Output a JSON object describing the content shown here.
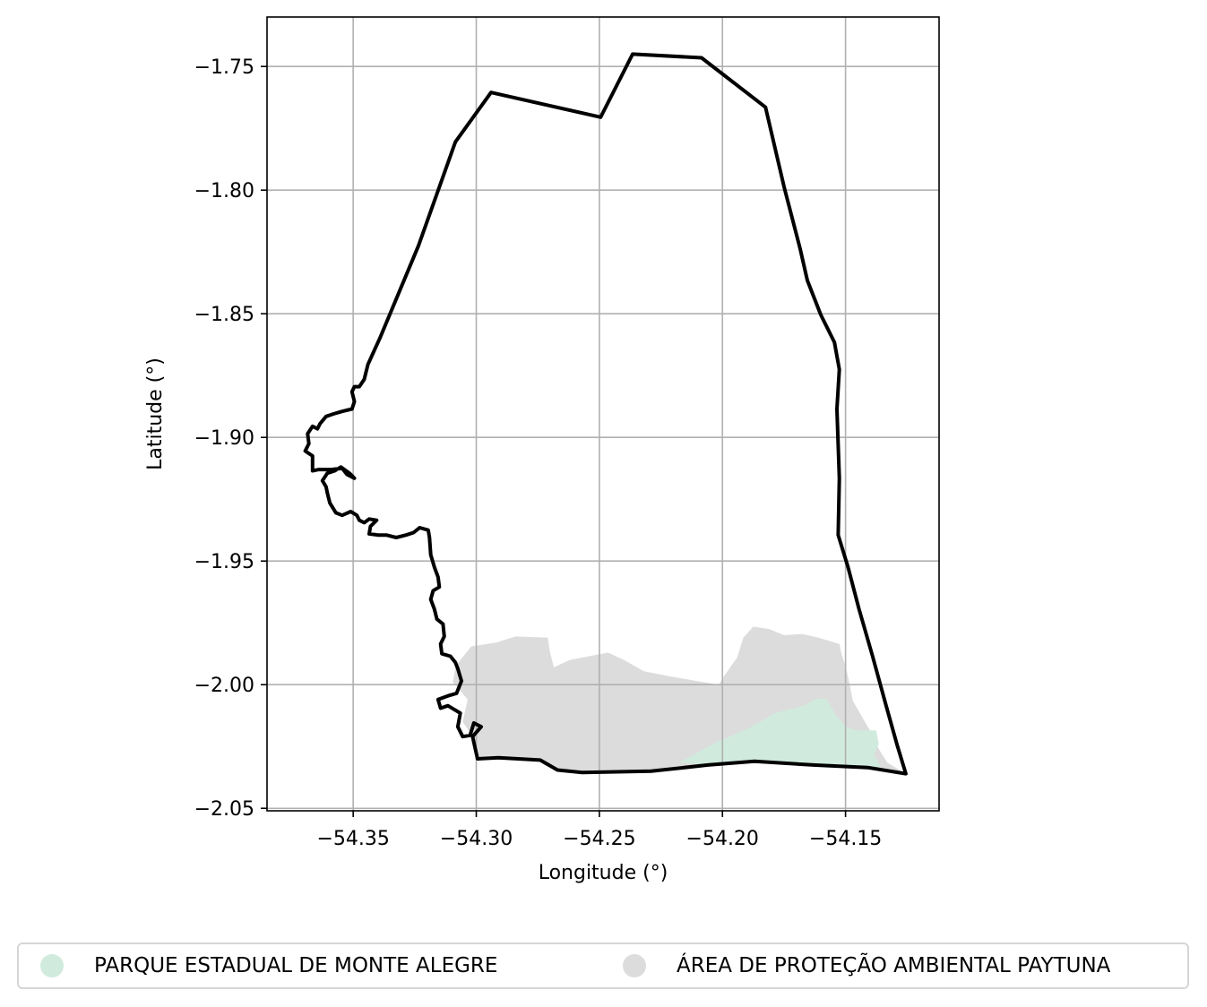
{
  "chart_data": {
    "type": "map",
    "title": "",
    "xlabel": "Longitude (°)",
    "ylabel": "Latitude (°)",
    "xlim": [
      -54.385,
      -54.112
    ],
    "ylim": [
      -2.051,
      -1.73
    ],
    "xticks": [
      -54.35,
      -54.3,
      -54.25,
      -54.2,
      -54.15
    ],
    "xtick_labels": [
      "−54.35",
      "−54.30",
      "−54.25",
      "−54.20",
      "−54.15"
    ],
    "yticks": [
      -1.75,
      -1.8,
      -1.85,
      -1.9,
      -1.95,
      -2.0,
      -2.05
    ],
    "ytick_labels": [
      "−1.75",
      "−1.80",
      "−1.85",
      "−1.90",
      "−1.95",
      "−2.00",
      "−2.05"
    ],
    "grid": true,
    "legend_position": "bottom-center",
    "layers": [
      {
        "name": "ÁREA DE PROTEÇÃO AMBIENTAL PAYTUNA",
        "color": "#dcdcdc",
        "kind": "filled-polygon",
        "coords": [
          [
            -54.3065,
            -1.99
          ],
          [
            -54.302,
            -1.9845
          ],
          [
            -54.292,
            -1.983
          ],
          [
            -54.284,
            -1.9805
          ],
          [
            -54.271,
            -1.981
          ],
          [
            -54.27,
            -1.987
          ],
          [
            -54.2685,
            -1.993
          ],
          [
            -54.262,
            -1.99
          ],
          [
            -54.2465,
            -1.987
          ],
          [
            -54.24,
            -1.99
          ],
          [
            -54.232,
            -1.9945
          ],
          [
            -54.222,
            -1.9965
          ],
          [
            -54.2105,
            -1.9985
          ],
          [
            -54.2015,
            -2.0
          ],
          [
            -54.199,
            -1.996
          ],
          [
            -54.194,
            -1.989
          ],
          [
            -54.1915,
            -1.981
          ],
          [
            -54.1875,
            -1.9765
          ],
          [
            -54.181,
            -1.9775
          ],
          [
            -54.175,
            -1.98
          ],
          [
            -54.1675,
            -1.9795
          ],
          [
            -54.161,
            -1.981
          ],
          [
            -54.1525,
            -1.9835
          ],
          [
            -54.1515,
            -1.988
          ],
          [
            -54.15,
            -1.9925
          ],
          [
            -54.1485,
            -1.999
          ],
          [
            -54.147,
            -2.0065
          ],
          [
            -54.143,
            -2.0135
          ],
          [
            -54.1395,
            -2.0195
          ],
          [
            -54.1365,
            -2.026
          ],
          [
            -54.133,
            -2.0315
          ],
          [
            -54.1255,
            -2.036
          ],
          [
            -54.141,
            -2.0335
          ],
          [
            -54.163,
            -2.0325
          ],
          [
            -54.187,
            -2.031
          ],
          [
            -54.206,
            -2.0325
          ],
          [
            -54.229,
            -2.035
          ],
          [
            -54.257,
            -2.0355
          ],
          [
            -54.267,
            -2.0345
          ],
          [
            -54.274,
            -2.0305
          ],
          [
            -54.291,
            -2.0295
          ],
          [
            -54.2995,
            -2.03
          ],
          [
            -54.3015,
            -2.021
          ],
          [
            -54.3055,
            -2.015
          ],
          [
            -54.3035,
            -2.006
          ],
          [
            -54.3095,
            -1.999
          ],
          [
            -54.3085,
            -1.993
          ]
        ]
      },
      {
        "name": "PARQUE ESTADUAL DE MONTE ALEGRE",
        "color": "#d0ebde",
        "kind": "filled-polygon",
        "coords": [
          [
            -54.2175,
            -2.0315
          ],
          [
            -54.203,
            -2.0235
          ],
          [
            -54.189,
            -2.0175
          ],
          [
            -54.1785,
            -2.0115
          ],
          [
            -54.167,
            -2.0085
          ],
          [
            -54.1615,
            -2.0055
          ],
          [
            -54.1575,
            -2.006
          ],
          [
            -54.1545,
            -2.0115
          ],
          [
            -54.1505,
            -2.0165
          ],
          [
            -54.1465,
            -2.0185
          ],
          [
            -54.142,
            -2.0185
          ],
          [
            -54.1375,
            -2.0185
          ],
          [
            -54.1365,
            -2.024
          ],
          [
            -54.1385,
            -2.0285
          ],
          [
            -54.1355,
            -2.0335
          ],
          [
            -54.141,
            -2.0335
          ],
          [
            -54.163,
            -2.0325
          ],
          [
            -54.187,
            -2.031
          ],
          [
            -54.206,
            -2.0325
          ]
        ]
      },
      {
        "name": "",
        "color": "#000000",
        "kind": "boundary",
        "coords": [
          [
            -54.2365,
            -1.745
          ],
          [
            -54.2085,
            -1.7465
          ],
          [
            -54.1825,
            -1.7665
          ],
          [
            -54.175,
            -1.7985
          ],
          [
            -54.1685,
            -1.8235
          ],
          [
            -54.1655,
            -1.8365
          ],
          [
            -54.16,
            -1.8505
          ],
          [
            -54.1545,
            -1.8615
          ],
          [
            -54.1525,
            -1.8725
          ],
          [
            -54.1535,
            -1.8885
          ],
          [
            -54.1525,
            -1.9165
          ],
          [
            -54.153,
            -1.9395
          ],
          [
            -54.149,
            -1.9525
          ],
          [
            -54.1445,
            -1.9695
          ],
          [
            -54.139,
            -1.9885
          ],
          [
            -54.1335,
            -2.0085
          ],
          [
            -54.129,
            -2.0245
          ],
          [
            -54.1255,
            -2.036
          ],
          [
            -54.141,
            -2.0335
          ],
          [
            -54.163,
            -2.0325
          ],
          [
            -54.187,
            -2.031
          ],
          [
            -54.206,
            -2.0325
          ],
          [
            -54.229,
            -2.035
          ],
          [
            -54.257,
            -2.0355
          ],
          [
            -54.267,
            -2.0345
          ],
          [
            -54.274,
            -2.0305
          ],
          [
            -54.291,
            -2.0295
          ],
          [
            -54.2995,
            -2.03
          ],
          [
            -54.3015,
            -2.021
          ],
          [
            -54.298,
            -2.017
          ],
          [
            -54.301,
            -2.0155
          ],
          [
            -54.3025,
            -2.0205
          ],
          [
            -54.3055,
            -2.021
          ],
          [
            -54.3075,
            -2.017
          ],
          [
            -54.3065,
            -2.0115
          ],
          [
            -54.3115,
            -2.0085
          ],
          [
            -54.3145,
            -2.0095
          ],
          [
            -54.3155,
            -2.006
          ],
          [
            -54.3115,
            -2.0045
          ],
          [
            -54.308,
            -2.0035
          ],
          [
            -54.306,
            -1.9985
          ],
          [
            -54.3075,
            -1.9935
          ],
          [
            -54.3085,
            -1.991
          ],
          [
            -54.3105,
            -1.9885
          ],
          [
            -54.314,
            -1.9875
          ],
          [
            -54.3145,
            -1.9835
          ],
          [
            -54.313,
            -1.9805
          ],
          [
            -54.3135,
            -1.9755
          ],
          [
            -54.316,
            -1.9735
          ],
          [
            -54.317,
            -1.9695
          ],
          [
            -54.3185,
            -1.9655
          ],
          [
            -54.3175,
            -1.962
          ],
          [
            -54.315,
            -1.9605
          ],
          [
            -54.3155,
            -1.9565
          ],
          [
            -54.317,
            -1.9525
          ],
          [
            -54.3185,
            -1.9475
          ],
          [
            -54.319,
            -1.9405
          ],
          [
            -54.3195,
            -1.9375
          ],
          [
            -54.323,
            -1.9365
          ],
          [
            -54.3255,
            -1.9385
          ],
          [
            -54.3285,
            -1.9395
          ],
          [
            -54.3325,
            -1.9405
          ],
          [
            -54.3365,
            -1.9395
          ],
          [
            -54.34,
            -1.9395
          ],
          [
            -54.3435,
            -1.939
          ],
          [
            -54.343,
            -1.936
          ],
          [
            -54.3405,
            -1.9335
          ],
          [
            -54.3435,
            -1.933
          ],
          [
            -54.3455,
            -1.9345
          ],
          [
            -54.3475,
            -1.9335
          ],
          [
            -54.3485,
            -1.9315
          ],
          [
            -54.351,
            -1.93
          ],
          [
            -54.3545,
            -1.9315
          ],
          [
            -54.357,
            -1.9305
          ],
          [
            -54.3595,
            -1.9265
          ],
          [
            -54.3605,
            -1.9225
          ],
          [
            -54.361,
            -1.92
          ],
          [
            -54.3625,
            -1.9175
          ],
          [
            -54.3605,
            -1.9145
          ],
          [
            -54.3575,
            -1.9135
          ],
          [
            -54.355,
            -1.912
          ],
          [
            -54.3515,
            -1.9145
          ],
          [
            -54.3495,
            -1.9165
          ],
          [
            -54.3525,
            -1.915
          ],
          [
            -54.3545,
            -1.9125
          ],
          [
            -54.359,
            -1.913
          ],
          [
            -54.364,
            -1.913
          ],
          [
            -54.3665,
            -1.9135
          ],
          [
            -54.3665,
            -1.9075
          ],
          [
            -54.3695,
            -1.9055
          ],
          [
            -54.368,
            -1.9025
          ],
          [
            -54.3685,
            -1.8985
          ],
          [
            -54.3665,
            -1.8955
          ],
          [
            -54.3645,
            -1.8965
          ],
          [
            -54.3635,
            -1.8945
          ],
          [
            -54.361,
            -1.8915
          ],
          [
            -54.358,
            -1.8905
          ],
          [
            -54.3545,
            -1.8895
          ],
          [
            -54.3505,
            -1.8885
          ],
          [
            -54.3495,
            -1.8855
          ],
          [
            -54.3505,
            -1.8815
          ],
          [
            -54.3495,
            -1.8795
          ],
          [
            -54.3475,
            -1.8795
          ],
          [
            -54.3455,
            -1.8765
          ],
          [
            -54.344,
            -1.8705
          ],
          [
            -54.339,
            -1.8595
          ],
          [
            -54.3235,
            -1.8225
          ],
          [
            -54.3085,
            -1.7805
          ],
          [
            -54.294,
            -1.7605
          ],
          [
            -54.2495,
            -1.7705
          ],
          [
            -54.2365,
            -1.745
          ]
        ]
      }
    ]
  },
  "legend": {
    "items": [
      {
        "label": "PARQUE ESTADUAL DE MONTE ALEGRE",
        "color": "#d0ebde"
      },
      {
        "label": "ÁREA DE PROTEÇÃO AMBIENTAL PAYTUNA",
        "color": "#dcdcdc"
      }
    ]
  }
}
